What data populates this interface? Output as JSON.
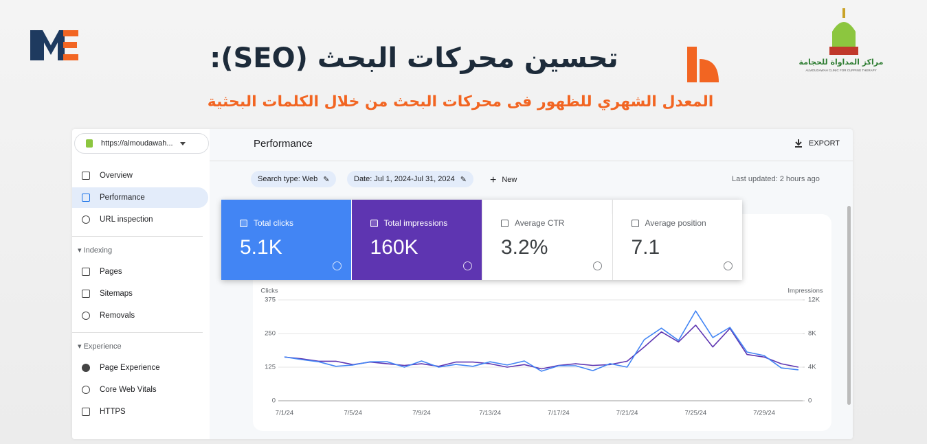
{
  "header": {
    "title": "تحسين محركات البحث (SEO):",
    "subtitle": "المعدل الشهري للظهور فى محركات البحث من خلال الكلمات البحثية",
    "brand_name": "مراكز المداواة للحجامة",
    "brand_tagline": "ALMOUDAWAH CLINIC FOR CUPPING THERAPY"
  },
  "sidebar": {
    "property": "https://almoudawah...",
    "nav": [
      "Overview",
      "Performance",
      "URL inspection"
    ],
    "sections": [
      {
        "title": "Indexing",
        "items": [
          "Pages",
          "Sitemaps",
          "Removals"
        ]
      },
      {
        "title": "Experience",
        "items": [
          "Page Experience",
          "Core Web Vitals",
          "HTTPS"
        ]
      }
    ]
  },
  "main": {
    "title": "Performance",
    "export": "EXPORT",
    "filters": [
      "Search type: Web",
      "Date: Jul 1, 2024-Jul 31, 2024"
    ],
    "new": "New",
    "updated": "Last updated: 2 hours ago",
    "cards": [
      {
        "label": "Total clicks",
        "value": "5.1K",
        "color": "#4285f4"
      },
      {
        "label": "Total impressions",
        "value": "160K",
        "color": "#5e35b1"
      },
      {
        "label": "Average CTR",
        "value": "3.2%"
      },
      {
        "label": "Average position",
        "value": "7.1"
      }
    ]
  },
  "chart_data": {
    "type": "line",
    "y_label": "Clicks",
    "y2_label": "Impressions",
    "categories": [
      "7/1/24",
      null,
      null,
      null,
      "7/5/24",
      null,
      null,
      null,
      "7/9/24",
      null,
      null,
      null,
      "7/13/24",
      null,
      null,
      null,
      "7/17/24",
      null,
      null,
      null,
      "7/21/24",
      null,
      null,
      null,
      "7/25/24",
      null,
      null,
      null,
      "7/29/24",
      null,
      null
    ],
    "ylim": [
      0,
      375
    ],
    "yticks": [
      0,
      125,
      250,
      375
    ],
    "y2lim": [
      0,
      12000
    ],
    "y2ticks": [
      0,
      {
        "value": 4000,
        "label": "4K"
      },
      {
        "value": 8000,
        "label": "8K"
      },
      {
        "value": 12000,
        "label": "12K"
      }
    ],
    "grid": true,
    "series": [
      {
        "name": "Clicks",
        "color": "#4285f4",
        "values": [
          163,
          153,
          145,
          128,
          133,
          145,
          145,
          125,
          148,
          125,
          135,
          128,
          145,
          133,
          148,
          110,
          130,
          130,
          112,
          138,
          125,
          227,
          270,
          224,
          334,
          235,
          273,
          181,
          168,
          122,
          115
        ]
      },
      {
        "name": "Impressions",
        "color": "#5e35b1",
        "axis": "y2",
        "values": [
          5200,
          5000,
          4700,
          4700,
          4300,
          4600,
          4400,
          4200,
          4400,
          4100,
          4600,
          4600,
          4400,
          4000,
          4300,
          3800,
          4200,
          4400,
          4200,
          4300,
          4700,
          6400,
          8200,
          7000,
          9000,
          6400,
          8600,
          5500,
          5200,
          4400,
          4000
        ]
      }
    ]
  }
}
